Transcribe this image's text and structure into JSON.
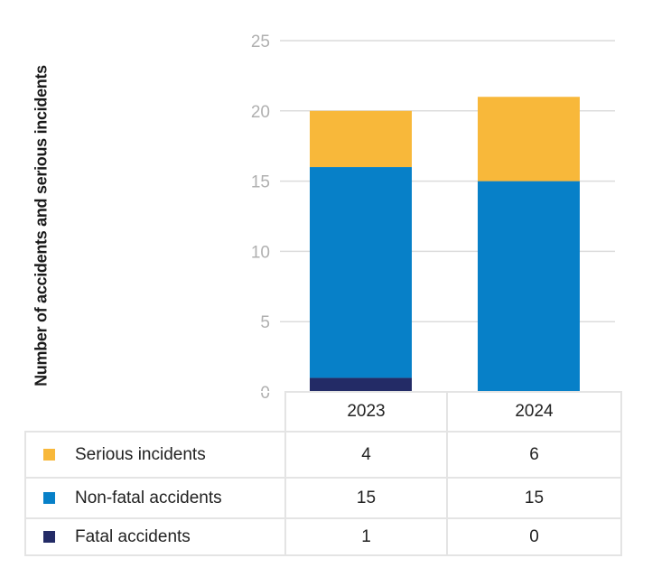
{
  "chart_data": {
    "type": "stacked-bar",
    "categories": [
      "2023",
      "2024"
    ],
    "ylabel": "Number of accidents and serious incidents",
    "ylim": [
      0,
      25
    ],
    "yticks": [
      0,
      5,
      10,
      15,
      20,
      25
    ],
    "grid": true,
    "series": [
      {
        "name": "Fatal accidents",
        "values": [
          1,
          0
        ],
        "color": "#232b66"
      },
      {
        "name": "Non-fatal accidents",
        "values": [
          15,
          15
        ],
        "color": "#0780c8"
      },
      {
        "name": "Serious incidents",
        "values": [
          4,
          6
        ],
        "color": "#f8b83a"
      }
    ],
    "legend": "table-below"
  }
}
